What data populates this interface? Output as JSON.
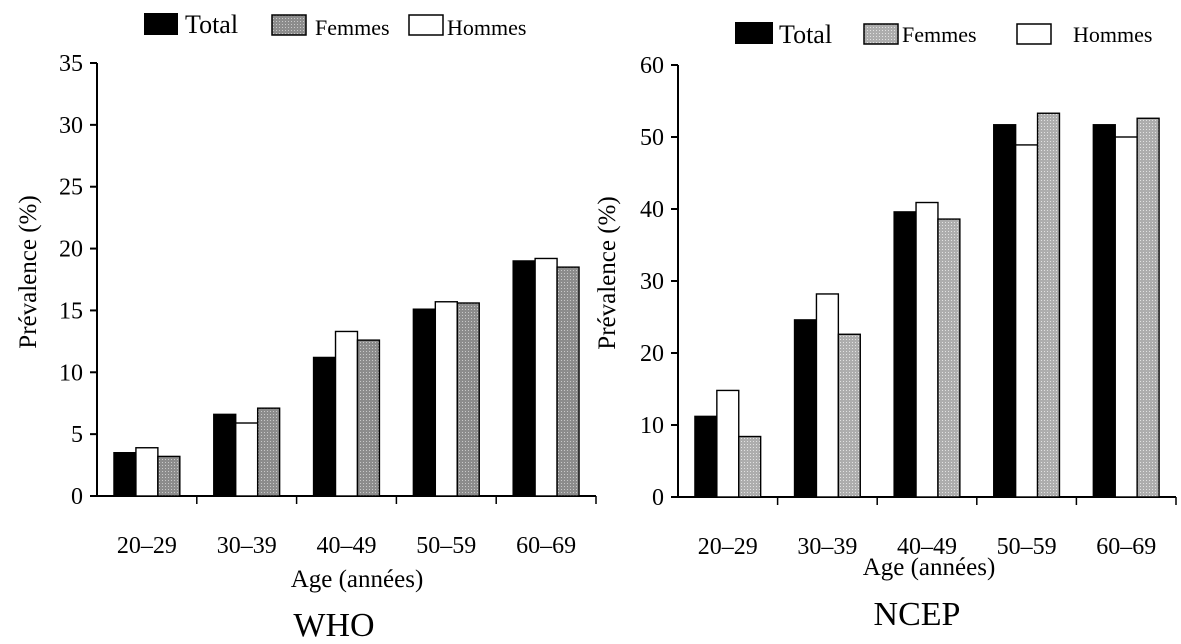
{
  "chart_data": [
    {
      "type": "bar",
      "title": "WHO",
      "xlabel": "Age (années)",
      "ylabel": "Prévalence (%)",
      "ylim": [
        0,
        35
      ],
      "yticks": [
        "0",
        "5",
        "10",
        "15",
        "20",
        "25",
        "30",
        "35"
      ],
      "categories": [
        "20–29",
        "30–39",
        "40–49",
        "50–59",
        "60–69"
      ],
      "legend": [
        "Total",
        "Femmes",
        "Hommes"
      ],
      "legend_position": "top",
      "bar_order": [
        "Total",
        "Hommes",
        "Femmes"
      ],
      "series": [
        {
          "name": "Total",
          "color": "#000000",
          "values": [
            3.5,
            6.6,
            11.2,
            15.1,
            19.0
          ]
        },
        {
          "name": "Hommes",
          "color": "#ffffff",
          "values": [
            3.9,
            5.9,
            13.3,
            15.7,
            19.2
          ]
        },
        {
          "name": "Femmes",
          "color": "#9a9a9a",
          "values": [
            3.2,
            7.1,
            12.6,
            15.6,
            18.5
          ]
        }
      ],
      "grid": false
    },
    {
      "type": "bar",
      "title": "NCEP",
      "xlabel": "Age (années)",
      "ylabel": "Prévalence (%)",
      "ylim": [
        0,
        60
      ],
      "yticks": [
        "0",
        "10",
        "20",
        "30",
        "40",
        "50",
        "60"
      ],
      "categories": [
        "20–29",
        "30–39",
        "40–49",
        "50–59",
        "60–69"
      ],
      "legend": [
        "Total",
        "Femmes",
        "Hommes"
      ],
      "legend_position": "top",
      "bar_order": [
        "Total",
        "Hommes",
        "Femmes"
      ],
      "series": [
        {
          "name": "Total",
          "color": "#000000",
          "values": [
            11.2,
            24.6,
            39.6,
            51.7,
            51.7
          ]
        },
        {
          "name": "Hommes",
          "color": "#ffffff",
          "values": [
            14.8,
            28.2,
            40.9,
            48.9,
            50.0
          ]
        },
        {
          "name": "Femmes",
          "color": "#b5b5b5",
          "values": [
            8.4,
            22.6,
            38.6,
            53.3,
            52.6
          ]
        }
      ],
      "grid": false
    }
  ]
}
